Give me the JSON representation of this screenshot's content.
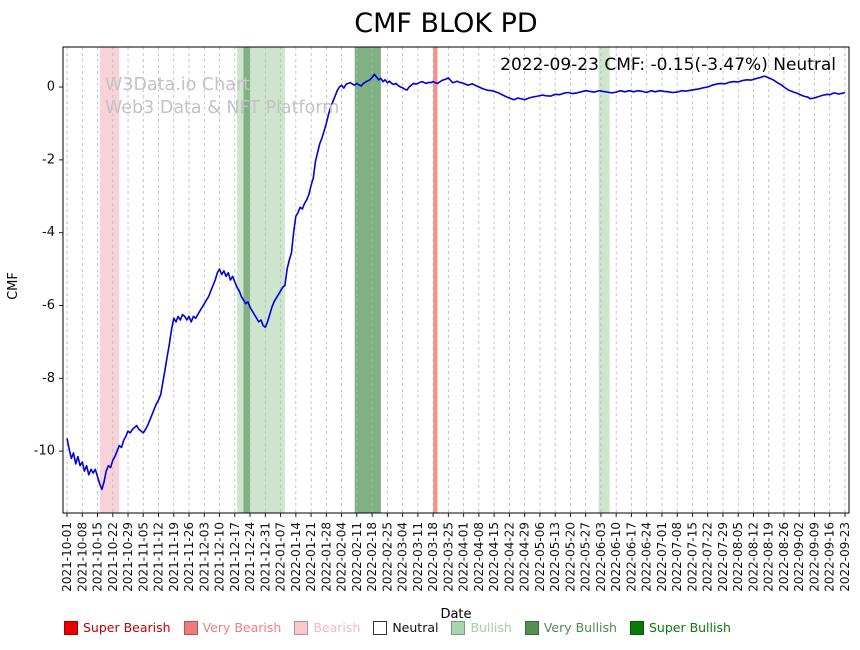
{
  "title": "CMF BLOK PD",
  "annotation": "2022-09-23 CMF: -0.15(-3.47%) Neutral",
  "watermark": {
    "line1": "W3Data.io Chart",
    "line2": "Web3 Data & NFT Platform"
  },
  "chart_data": {
    "type": "line",
    "title": "CMF BLOK PD",
    "xlabel": "Date",
    "ylabel": "CMF",
    "x_start": "2021-10-01",
    "x_end": "2022-09-23",
    "ylim": [
      -11.7,
      1.1
    ],
    "yticks": [
      0,
      -2,
      -4,
      -6,
      -8,
      -10
    ],
    "grid": "dashed vertical gridlines at weekly x ticks",
    "legend_position": "bottom",
    "line_color": "#0000dd",
    "xticks": [
      "2021-10-01",
      "2021-10-08",
      "2021-10-15",
      "2021-10-22",
      "2021-10-29",
      "2021-11-05",
      "2021-11-12",
      "2021-11-19",
      "2021-11-26",
      "2021-12-03",
      "2021-12-10",
      "2021-12-17",
      "2021-12-24",
      "2021-12-31",
      "2022-01-07",
      "2022-01-14",
      "2022-01-21",
      "2022-01-28",
      "2022-02-04",
      "2022-02-11",
      "2022-02-18",
      "2022-02-25",
      "2022-03-04",
      "2022-03-11",
      "2022-03-18",
      "2022-03-25",
      "2022-04-01",
      "2022-04-08",
      "2022-04-15",
      "2022-04-22",
      "2022-04-29",
      "2022-05-06",
      "2022-05-13",
      "2022-05-20",
      "2022-05-27",
      "2022-06-03",
      "2022-06-10",
      "2022-06-17",
      "2022-06-24",
      "2022-07-01",
      "2022-07-08",
      "2022-07-15",
      "2022-07-22",
      "2022-07-29",
      "2022-08-05",
      "2022-08-12",
      "2022-08-19",
      "2022-08-26",
      "2022-09-02",
      "2022-09-09",
      "2022-09-16",
      "2022-09-23"
    ],
    "bands": [
      {
        "from": "2021-10-16",
        "to": "2021-10-25",
        "kind": "bearish"
      },
      {
        "from": "2021-12-18",
        "to": "2022-01-09",
        "kind": "bullish"
      },
      {
        "from": "2021-12-21",
        "to": "2021-12-24",
        "kind": "very_bullish"
      },
      {
        "from": "2022-02-10",
        "to": "2022-02-22",
        "kind": "very_bullish"
      },
      {
        "from": "2022-03-18",
        "to": "2022-03-20",
        "kind": "very_bearish"
      },
      {
        "from": "2022-06-02",
        "to": "2022-06-07",
        "kind": "bullish"
      }
    ],
    "band_colors": {
      "bearish": "#f8d2d9",
      "bullish": "#cde4cd",
      "very_bullish": "#80b183",
      "very_bearish": "#f2928f"
    },
    "last_point": {
      "date": "2022-09-23",
      "cmf": -0.15,
      "change_pct": -3.47,
      "signal": "Neutral"
    },
    "series": [
      {
        "name": "CMF",
        "points": [
          [
            0,
            -9.65
          ],
          [
            1,
            -9.95
          ],
          [
            2,
            -10.2
          ],
          [
            3,
            -10.05
          ],
          [
            4,
            -10.35
          ],
          [
            5,
            -10.15
          ],
          [
            6,
            -10.4
          ],
          [
            7,
            -10.3
          ],
          [
            8,
            -10.55
          ],
          [
            9,
            -10.4
          ],
          [
            10,
            -10.65
          ],
          [
            11,
            -10.5
          ],
          [
            12,
            -10.6
          ],
          [
            13,
            -10.5
          ],
          [
            14,
            -10.7
          ],
          [
            15,
            -10.9
          ],
          [
            16,
            -11.05
          ],
          [
            17,
            -10.85
          ],
          [
            18,
            -10.55
          ],
          [
            19,
            -10.4
          ],
          [
            20,
            -10.45
          ],
          [
            21,
            -10.25
          ],
          [
            22,
            -10.15
          ],
          [
            23,
            -10.0
          ],
          [
            24,
            -9.85
          ],
          [
            25,
            -9.9
          ],
          [
            26,
            -9.7
          ],
          [
            27,
            -9.6
          ],
          [
            28,
            -9.45
          ],
          [
            29,
            -9.5
          ],
          [
            30,
            -9.4
          ],
          [
            31,
            -9.35
          ],
          [
            32,
            -9.3
          ],
          [
            33,
            -9.4
          ],
          [
            34,
            -9.45
          ],
          [
            35,
            -9.5
          ],
          [
            36,
            -9.4
          ],
          [
            37,
            -9.3
          ],
          [
            38,
            -9.15
          ],
          [
            39,
            -9.0
          ],
          [
            40,
            -8.85
          ],
          [
            41,
            -8.7
          ],
          [
            42,
            -8.6
          ],
          [
            43,
            -8.45
          ],
          [
            44,
            -8.1
          ],
          [
            45,
            -7.75
          ],
          [
            46,
            -7.4
          ],
          [
            47,
            -7.05
          ],
          [
            48,
            -6.65
          ],
          [
            49,
            -6.35
          ],
          [
            50,
            -6.45
          ],
          [
            51,
            -6.3
          ],
          [
            52,
            -6.4
          ],
          [
            53,
            -6.25
          ],
          [
            54,
            -6.3
          ],
          [
            55,
            -6.4
          ],
          [
            56,
            -6.3
          ],
          [
            57,
            -6.45
          ],
          [
            58,
            -6.3
          ],
          [
            59,
            -6.35
          ],
          [
            60,
            -6.25
          ],
          [
            61,
            -6.15
          ],
          [
            62,
            -6.05
          ],
          [
            63,
            -5.95
          ],
          [
            64,
            -5.85
          ],
          [
            65,
            -5.75
          ],
          [
            66,
            -5.6
          ],
          [
            67,
            -5.45
          ],
          [
            68,
            -5.3
          ],
          [
            69,
            -5.1
          ],
          [
            70,
            -5.0
          ],
          [
            71,
            -5.15
          ],
          [
            72,
            -5.05
          ],
          [
            73,
            -5.2
          ],
          [
            74,
            -5.1
          ],
          [
            75,
            -5.3
          ],
          [
            76,
            -5.2
          ],
          [
            77,
            -5.35
          ],
          [
            78,
            -5.5
          ],
          [
            79,
            -5.6
          ],
          [
            80,
            -5.75
          ],
          [
            81,
            -5.85
          ],
          [
            82,
            -5.95
          ],
          [
            83,
            -5.9
          ],
          [
            84,
            -6.05
          ],
          [
            85,
            -6.15
          ],
          [
            86,
            -6.25
          ],
          [
            87,
            -6.35
          ],
          [
            88,
            -6.45
          ],
          [
            89,
            -6.4
          ],
          [
            90,
            -6.55
          ],
          [
            91,
            -6.6
          ],
          [
            92,
            -6.45
          ],
          [
            93,
            -6.25
          ],
          [
            94,
            -6.05
          ],
          [
            95,
            -5.9
          ],
          [
            96,
            -5.8
          ],
          [
            97,
            -5.7
          ],
          [
            98,
            -5.6
          ],
          [
            99,
            -5.5
          ],
          [
            100,
            -5.45
          ],
          [
            101,
            -5.0
          ],
          [
            102,
            -4.75
          ],
          [
            103,
            -4.55
          ],
          [
            104,
            -4.0
          ],
          [
            105,
            -3.55
          ],
          [
            106,
            -3.45
          ],
          [
            107,
            -3.3
          ],
          [
            108,
            -3.35
          ],
          [
            109,
            -3.2
          ],
          [
            110,
            -3.1
          ],
          [
            111,
            -2.95
          ],
          [
            112,
            -2.7
          ],
          [
            113,
            -2.5
          ],
          [
            114,
            -2.05
          ],
          [
            115,
            -1.8
          ],
          [
            116,
            -1.55
          ],
          [
            117,
            -1.4
          ],
          [
            118,
            -1.2
          ],
          [
            119,
            -1.0
          ],
          [
            120,
            -0.75
          ],
          [
            121,
            -0.55
          ],
          [
            122,
            -0.4
          ],
          [
            123,
            -0.25
          ],
          [
            124,
            -0.1
          ],
          [
            125,
            0.0
          ],
          [
            126,
            0.05
          ],
          [
            127,
            -0.03
          ],
          [
            128,
            0.07
          ],
          [
            129,
            0.1
          ],
          [
            130,
            0.12
          ],
          [
            131,
            0.08
          ],
          [
            132,
            0.05
          ],
          [
            133,
            0.1
          ],
          [
            134,
            0.06
          ],
          [
            135,
            0.03
          ],
          [
            136,
            0.1
          ],
          [
            137,
            0.14
          ],
          [
            138,
            0.17
          ],
          [
            139,
            0.2
          ],
          [
            140,
            0.26
          ],
          [
            141,
            0.35
          ],
          [
            142,
            0.28
          ],
          [
            143,
            0.2
          ],
          [
            144,
            0.24
          ],
          [
            145,
            0.15
          ],
          [
            146,
            0.2
          ],
          [
            147,
            0.12
          ],
          [
            148,
            0.16
          ],
          [
            149,
            0.1
          ],
          [
            150,
            0.07
          ],
          [
            151,
            0.1
          ],
          [
            152,
            0.04
          ],
          [
            153,
            0.0
          ],
          [
            154,
            -0.02
          ],
          [
            155,
            -0.06
          ],
          [
            156,
            -0.08
          ],
          [
            157,
            0.0
          ],
          [
            158,
            0.05
          ],
          [
            159,
            0.1
          ],
          [
            160,
            0.08
          ],
          [
            161,
            0.1
          ],
          [
            162,
            0.13
          ],
          [
            163,
            0.15
          ],
          [
            164,
            0.12
          ],
          [
            165,
            0.1
          ],
          [
            166,
            0.13
          ],
          [
            167,
            0.12
          ],
          [
            168,
            0.15
          ],
          [
            169,
            0.12
          ],
          [
            170,
            0.1
          ],
          [
            171,
            0.14
          ],
          [
            172,
            0.18
          ],
          [
            173,
            0.2
          ],
          [
            174,
            0.22
          ],
          [
            175,
            0.25
          ],
          [
            176,
            0.18
          ],
          [
            177,
            0.12
          ],
          [
            178,
            0.14
          ],
          [
            179,
            0.16
          ],
          [
            180,
            0.13
          ],
          [
            181,
            0.12
          ],
          [
            182,
            0.1
          ],
          [
            184,
            0.05
          ],
          [
            186,
            0.09
          ],
          [
            188,
            0.03
          ],
          [
            189,
            0.0
          ],
          [
            191,
            -0.05
          ],
          [
            193,
            -0.09
          ],
          [
            195,
            -0.1
          ],
          [
            196,
            -0.12
          ],
          [
            198,
            -0.16
          ],
          [
            200,
            -0.22
          ],
          [
            202,
            -0.28
          ],
          [
            203,
            -0.3
          ],
          [
            205,
            -0.35
          ],
          [
            207,
            -0.3
          ],
          [
            209,
            -0.33
          ],
          [
            210,
            -0.35
          ],
          [
            212,
            -0.3
          ],
          [
            214,
            -0.27
          ],
          [
            216,
            -0.25
          ],
          [
            218,
            -0.22
          ],
          [
            220,
            -0.24
          ],
          [
            222,
            -0.25
          ],
          [
            224,
            -0.2
          ],
          [
            226,
            -0.21
          ],
          [
            228,
            -0.17
          ],
          [
            230,
            -0.15
          ],
          [
            232,
            -0.18
          ],
          [
            234,
            -0.16
          ],
          [
            236,
            -0.13
          ],
          [
            238,
            -0.1
          ],
          [
            240,
            -0.12
          ],
          [
            242,
            -0.14
          ],
          [
            244,
            -0.1
          ],
          [
            246,
            -0.12
          ],
          [
            248,
            -0.14
          ],
          [
            250,
            -0.16
          ],
          [
            252,
            -0.14
          ],
          [
            254,
            -0.1
          ],
          [
            256,
            -0.13
          ],
          [
            258,
            -0.1
          ],
          [
            260,
            -0.13
          ],
          [
            262,
            -0.1
          ],
          [
            264,
            -0.12
          ],
          [
            266,
            -0.15
          ],
          [
            268,
            -0.1
          ],
          [
            270,
            -0.13
          ],
          [
            272,
            -0.1
          ],
          [
            274,
            -0.12
          ],
          [
            276,
            -0.13
          ],
          [
            278,
            -0.15
          ],
          [
            280,
            -0.14
          ],
          [
            282,
            -0.1
          ],
          [
            284,
            -0.11
          ],
          [
            286,
            -0.09
          ],
          [
            288,
            -0.07
          ],
          [
            290,
            -0.05
          ],
          [
            292,
            -0.02
          ],
          [
            294,
            0.0
          ],
          [
            296,
            0.05
          ],
          [
            298,
            0.08
          ],
          [
            300,
            0.1
          ],
          [
            302,
            0.09
          ],
          [
            304,
            0.13
          ],
          [
            306,
            0.15
          ],
          [
            308,
            0.14
          ],
          [
            310,
            0.18
          ],
          [
            312,
            0.2
          ],
          [
            314,
            0.19
          ],
          [
            316,
            0.23
          ],
          [
            318,
            0.26
          ],
          [
            320,
            0.3
          ],
          [
            321,
            0.28
          ],
          [
            322,
            0.25
          ],
          [
            324,
            0.2
          ],
          [
            326,
            0.12
          ],
          [
            328,
            0.05
          ],
          [
            329,
            0.0
          ],
          [
            331,
            -0.08
          ],
          [
            333,
            -0.13
          ],
          [
            335,
            -0.17
          ],
          [
            336,
            -0.2
          ],
          [
            338,
            -0.25
          ],
          [
            340,
            -0.28
          ],
          [
            341,
            -0.32
          ],
          [
            343,
            -0.3
          ],
          [
            345,
            -0.26
          ],
          [
            347,
            -0.22
          ],
          [
            349,
            -0.2
          ],
          [
            350,
            -0.21
          ],
          [
            352,
            -0.16
          ],
          [
            354,
            -0.19
          ],
          [
            356,
            -0.17
          ],
          [
            357,
            -0.15
          ]
        ]
      }
    ]
  },
  "legend": {
    "items": [
      {
        "slug": "super-bearish",
        "label": "Super Bearish",
        "swatch": "#e60000",
        "label_color": "#c00000"
      },
      {
        "slug": "very-bearish",
        "label": "Very Bearish",
        "swatch": "#f47a7a",
        "label_color": "#ef7d7d"
      },
      {
        "slug": "bearish",
        "label": "Bearish",
        "swatch": "#f9c8ce",
        "label_color": "#f4b8c0"
      },
      {
        "slug": "neutral",
        "label": "Neutral",
        "swatch": "#ffffff",
        "label_color": "#111111"
      },
      {
        "slug": "bullish",
        "label": "Bullish",
        "swatch": "#abd4ab",
        "label_color": "#a5cfa5"
      },
      {
        "slug": "very-bullish",
        "label": "Very Bullish",
        "swatch": "#518f52",
        "label_color": "#4d8b4e"
      },
      {
        "slug": "super-bullish",
        "label": "Super Bullish",
        "swatch": "#0a7a0a",
        "label_color": "#0a7a0a"
      }
    ]
  }
}
